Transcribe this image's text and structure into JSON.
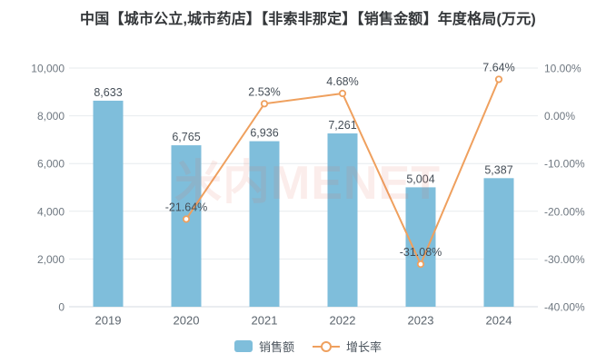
{
  "title": "中国【城市公立,城市药店】【非索非那定】【销售金额】年度格局(万元)",
  "watermark": "米内MENET",
  "colors": {
    "bar": "#7FBEDB",
    "line": "#EFA05E",
    "grid": "#E7EBEE",
    "axis_line": "#D5DBE0",
    "tick_text": "#6E7780",
    "data_label": "#454E57",
    "x_label": "#5B646D",
    "title_text": "#333639"
  },
  "legend": [
    {
      "label": "销售额",
      "type": "bar"
    },
    {
      "label": "增长率",
      "type": "line"
    }
  ],
  "chart_data": {
    "type": "bar+line combo",
    "title": "中国【城市公立,城市药店】【非索非那定】【销售金额】年度格局(万元)",
    "categories": [
      "2019",
      "2020",
      "2021",
      "2022",
      "2023",
      "2024"
    ],
    "series": [
      {
        "name": "销售额",
        "type": "bar",
        "axis": "left",
        "values": [
          8633,
          6765,
          6936,
          7261,
          5004,
          5387
        ]
      },
      {
        "name": "增长率",
        "type": "line",
        "axis": "right",
        "values": [
          null,
          -21.64,
          2.53,
          4.68,
          -31.08,
          7.64
        ]
      }
    ],
    "left_axis": {
      "min": 0,
      "max": 10000,
      "ticks_bottom_to_top": [
        "0",
        "2,000",
        "4,000",
        "6,000",
        "8,000",
        "10,000"
      ]
    },
    "right_axis": {
      "min": -40,
      "max": 10,
      "ticks_bottom_to_top": [
        "-40.00%",
        "-30.00%",
        "-20.00%",
        "-10.00%",
        "0.00%",
        "10.00%"
      ]
    },
    "grid": true,
    "legend_position": "bottom"
  }
}
